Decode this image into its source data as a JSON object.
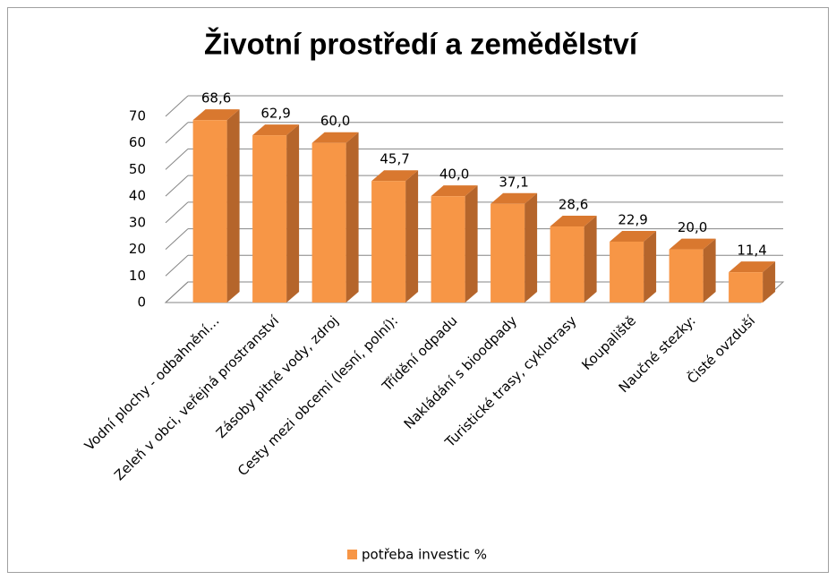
{
  "chart_data": {
    "type": "bar3d",
    "title": "Životní prostředí a zemědělství",
    "categories": [
      "Vodní plochy - odbahnění…",
      "Zeleň v obci, veřejná prostranství",
      "Zásoby pitné vody, zdroj",
      "Cesty mezi obcemi (lesní, polní):",
      "Třídění odpadu",
      "Nakládání s bioodpady",
      "Turistické trasy, cyklotrasy",
      "Koupaliště",
      "Naučné stezky:",
      "Čisté ovzduší"
    ],
    "series": [
      {
        "name": "potřeba investic %",
        "color": "#f79646",
        "values": [
          68.6,
          62.9,
          60.0,
          45.7,
          40.0,
          37.1,
          28.6,
          22.9,
          20.0,
          11.4
        ],
        "value_labels": [
          "68,6",
          "62,9",
          "60,0",
          "45,7",
          "40,0",
          "37,1",
          "28,6",
          "22,9",
          "20,0",
          "11,4"
        ]
      }
    ],
    "ylim": [
      0,
      70
    ],
    "yticks": [
      0,
      10,
      20,
      30,
      40,
      50,
      60,
      70
    ],
    "grid": true,
    "legend": "bottom"
  }
}
